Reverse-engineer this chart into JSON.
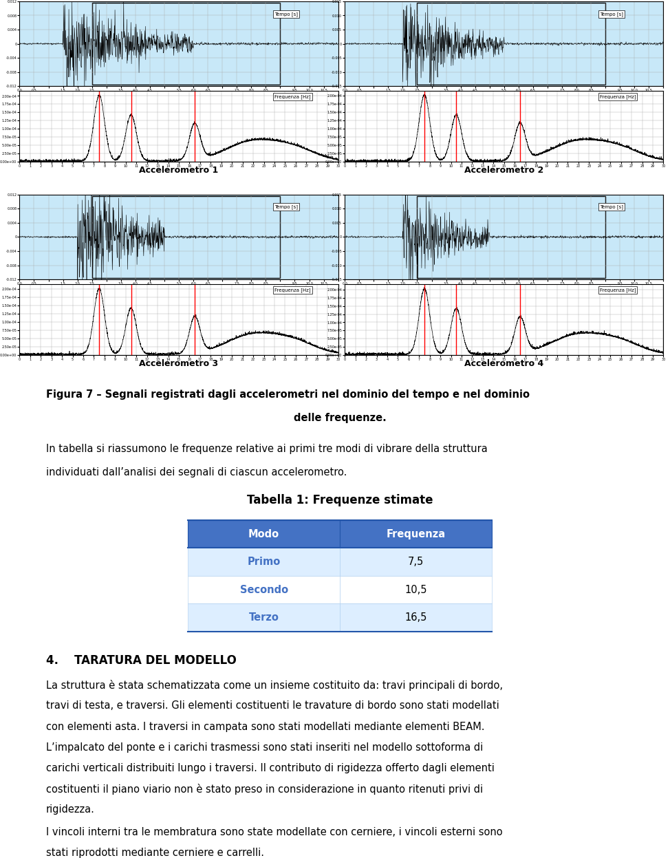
{
  "title_table": "Tabella 1: Frequenze stimate",
  "col_headers": [
    "Modo",
    "Frequenza"
  ],
  "rows": [
    [
      "Primo",
      "7,5"
    ],
    [
      "Secondo",
      "10,5"
    ],
    [
      "Terzo",
      "16,5"
    ]
  ],
  "header_color": "#4472C4",
  "row_colors": [
    "#DDEEFF",
    "#FFFFFF",
    "#DDEEFF"
  ],
  "header_text_color": "#FFFFFF",
  "row_text_color": "#4472C4",
  "fig_caption_line1": "Figura 7 – Segnali registrati dagli accelerometri nel dominio del tempo e nel dominio",
  "fig_caption_line2": "delle frequenze.",
  "acc_labels": [
    "Accelerometro 1",
    "Accelerometro 2",
    "Accelerometro 3",
    "Accelerometro 4"
  ],
  "intro_text_line1": "In tabella si riassumono le frequenze relative ai primi tre modi di vibrare della struttura",
  "intro_text_line2": "individuati dall’analisi dei segnali di ciascun accelerometro.",
  "section_title": "4.    TARATURA DEL MODELLO",
  "para1_parts": [
    "La struttura è stata schematizzata come un insieme costituito da: travi principali di bordo,",
    "travi di testa, e traversi. Gli elementi costituenti le travature di bordo sono stati modellati",
    "con elementi asta. I traversi in campata sono stati modellati mediante elementi BEAM.",
    "L’impalcato del ponte e i carichi trasmessi sono stati inseriti nel modello sottoforma di",
    "carichi verticali distribuiti lungo i traversi. Il contributo di rigidezza offerto dagli elementi",
    "costituenti il piano viario non è stato preso in considerazione in quanto ritenuti privi di",
    "rigidezza."
  ],
  "para2_parts": [
    "I vincoli interni tra le membratura sono state modellate con cerniere, i vincoli esterni sono",
    "stati riprodotti mediante cerniere e carrelli."
  ],
  "background_color": "#FFFFFF",
  "text_color": "#000000",
  "font_size_body": 10.5,
  "font_size_caption": 10.5,
  "font_size_section": 12,
  "font_size_table_title": 12
}
